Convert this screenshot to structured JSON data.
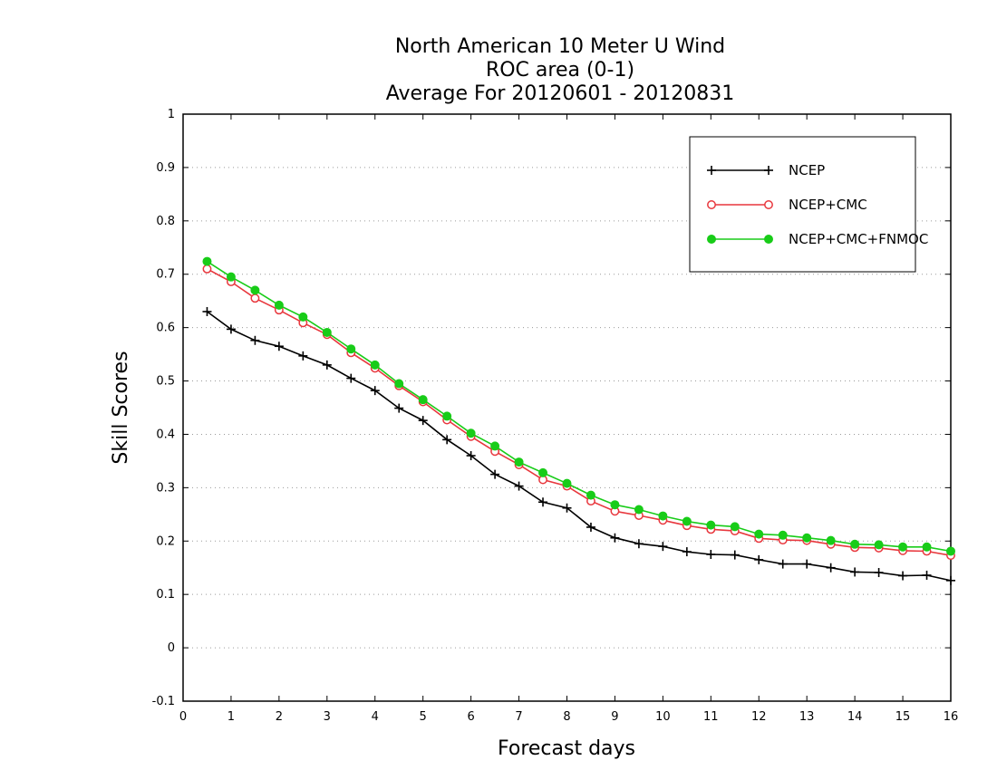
{
  "chart_data": {
    "type": "line",
    "title": [
      "North American 10 Meter U Wind",
      "ROC area (0-1)",
      "Average For 20120601 - 20120831"
    ],
    "xlabel": "Forecast days",
    "ylabel": "Skill Scores",
    "xlim": [
      0,
      16
    ],
    "ylim": [
      -0.1,
      1
    ],
    "xticks": [
      "0",
      "1",
      "2",
      "3",
      "4",
      "5",
      "6",
      "7",
      "8",
      "9",
      "10",
      "11",
      "12",
      "13",
      "14",
      "15",
      "16"
    ],
    "yticks": [
      "1",
      "0.9",
      "0.8",
      "0.7",
      "0.6",
      "0.5",
      "0.4",
      "0.3",
      "0.2",
      "0.1",
      "0",
      "-0.1"
    ],
    "grid": true,
    "legend_position": "top-right",
    "x": [
      0.5,
      1,
      1.5,
      2,
      2.5,
      3,
      3.5,
      4,
      4.5,
      5,
      5.5,
      6,
      6.5,
      7,
      7.5,
      8,
      8.5,
      9,
      9.5,
      10,
      10.5,
      11,
      11.5,
      12,
      12.5,
      13,
      13.5,
      14,
      14.5,
      15,
      15.5,
      16
    ],
    "series": [
      {
        "name": "NCEP",
        "color": "#000000",
        "marker": "plus",
        "values": [
          0.63,
          0.597,
          0.576,
          0.565,
          0.547,
          0.53,
          0.505,
          0.482,
          0.449,
          0.426,
          0.39,
          0.36,
          0.325,
          0.303,
          0.273,
          0.262,
          0.226,
          0.206,
          0.195,
          0.19,
          0.18,
          0.175,
          0.174,
          0.165,
          0.157,
          0.157,
          0.15,
          0.142,
          0.141,
          0.135,
          0.136,
          0.126
        ]
      },
      {
        "name": "NCEP+CMC",
        "color": "#e8373d",
        "marker": "open-circle",
        "values": [
          0.71,
          0.686,
          0.655,
          0.633,
          0.609,
          0.587,
          0.553,
          0.524,
          0.491,
          0.461,
          0.427,
          0.396,
          0.368,
          0.343,
          0.315,
          0.303,
          0.275,
          0.256,
          0.248,
          0.239,
          0.229,
          0.222,
          0.219,
          0.205,
          0.202,
          0.201,
          0.194,
          0.188,
          0.187,
          0.182,
          0.181,
          0.173
        ]
      },
      {
        "name": "NCEP+CMC+FNMOC",
        "color": "#18cc18",
        "marker": "filled-circle",
        "values": [
          0.724,
          0.695,
          0.67,
          0.642,
          0.62,
          0.591,
          0.56,
          0.53,
          0.495,
          0.465,
          0.434,
          0.402,
          0.378,
          0.348,
          0.328,
          0.308,
          0.286,
          0.268,
          0.259,
          0.247,
          0.237,
          0.23,
          0.227,
          0.213,
          0.211,
          0.206,
          0.201,
          0.194,
          0.193,
          0.189,
          0.189,
          0.181
        ]
      }
    ]
  }
}
